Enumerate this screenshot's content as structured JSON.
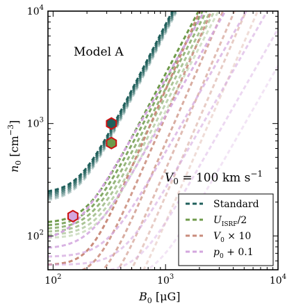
{
  "chart_data": {
    "type": "line",
    "title": "",
    "xlabel": "B_0 [μG]",
    "ylabel": "n_0 [cm^-3]",
    "xscale": "log",
    "yscale": "log",
    "xlim": [
      90,
      10000
    ],
    "ylim": [
      50,
      10000
    ],
    "x_ticks": [
      {
        "value": 100,
        "base": "10",
        "exp": "2"
      },
      {
        "value": 1000,
        "base": "10",
        "exp": "3"
      },
      {
        "value": 10000,
        "base": "10",
        "exp": "4"
      }
    ],
    "y_ticks": [
      {
        "value": 100,
        "base": "10",
        "exp": "2"
      },
      {
        "value": 1000,
        "base": "10",
        "exp": "3"
      },
      {
        "value": 10000,
        "base": "10",
        "exp": "4"
      }
    ],
    "grid": false,
    "legend": "bottom-right",
    "annotations": {
      "model": "Model A",
      "velocity_main": "V",
      "velocity_sub": "0",
      "velocity_value": " = 100 km s",
      "velocity_exp": "−1"
    },
    "series": [
      {
        "key": "standard",
        "name": "Standard",
        "label_main": "Standard",
        "label_sub": "",
        "label_rest": "",
        "color": "#1f5f5b",
        "floor": 240,
        "floor_step": 0.965,
        "turn_b": 170,
        "slope": 1.95,
        "n_curves": 6,
        "b_offset": 1.0
      },
      {
        "key": "uisrf",
        "name": "U_ISRF/2",
        "label_main": "U",
        "label_sub": "ISRF",
        "label_rest": "/2",
        "color": "#6e9a4a",
        "floor": 130,
        "floor_step": 0.94,
        "turn_b": 200,
        "slope": 1.9,
        "n_curves": 6,
        "b_offset": 1.05
      },
      {
        "key": "v0x10",
        "name": "V_0 × 10",
        "label_main": "V",
        "label_sub": "0",
        "label_rest": " × 10",
        "color": "#c98c7c",
        "floor": 55,
        "floor_step": 0.8,
        "turn_b": 210,
        "slope": 2.3,
        "n_curves": 6,
        "b_offset": 1.15
      },
      {
        "key": "p0",
        "name": "p_0 + 0.1",
        "label_main": "p",
        "label_sub": "0",
        "label_rest": " + 0.1",
        "color": "#d3a6de",
        "floor": 90,
        "floor_step": 0.85,
        "turn_b": 150,
        "slope": 1.75,
        "n_curves": 6,
        "b_offset": 1.4
      }
    ],
    "markers": [
      {
        "x": 330,
        "y": 1000,
        "fill": "#1f5f5b",
        "edge": "#cc1111"
      },
      {
        "x": 330,
        "y": 670,
        "fill": "#6e9a4a",
        "edge": "#cc1111"
      },
      {
        "x": 150,
        "y": 150,
        "fill": "#d3a6de",
        "edge": "#cc1111"
      }
    ]
  }
}
